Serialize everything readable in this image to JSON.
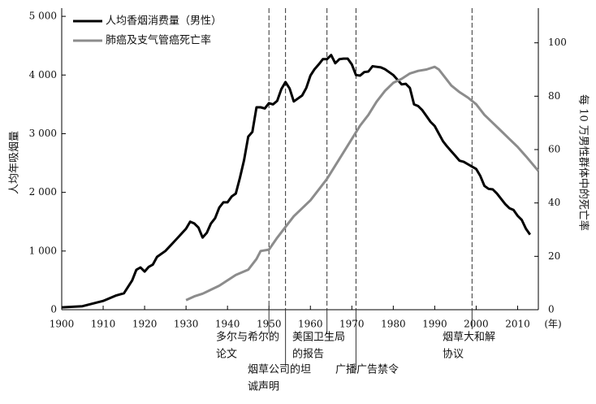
{
  "chart_data": {
    "type": "line",
    "xlabel": "(年)",
    "ylabel": "人均年吸烟量",
    "y2label": "每 10 万男性群体中的死亡率",
    "xlim": [
      1900,
      2015
    ],
    "xticks": [
      1900,
      1910,
      1920,
      1930,
      1940,
      1950,
      1960,
      1970,
      1980,
      1990,
      2000,
      2010
    ],
    "ylim": [
      0,
      5140
    ],
    "yticks": [
      0,
      {
        "value": 1000,
        "label": "1 000"
      },
      {
        "value": 2000,
        "label": "2 000"
      },
      {
        "value": 3000,
        "label": "3 000"
      },
      {
        "value": 4000,
        "label": "4 000"
      },
      {
        "value": 5000,
        "label": "5 000"
      }
    ],
    "y2lim": [
      0,
      113
    ],
    "y2ticks": [
      0,
      20,
      40,
      60,
      80,
      100
    ],
    "legend": "upper left",
    "series": [
      {
        "name": "人均香烟消费量（男性）",
        "color": "#000000",
        "x": [
          1900,
          1905,
          1910,
          1913,
          1915,
          1917,
          1918,
          1919,
          1920,
          1921,
          1922,
          1923,
          1925,
          1927,
          1930,
          1931,
          1932,
          1933,
          1934,
          1935,
          1936,
          1937,
          1938,
          1939,
          1940,
          1941,
          1942,
          1943,
          1944,
          1945,
          1946,
          1947,
          1948,
          1949,
          1950,
          1951,
          1952,
          1953,
          1954,
          1955,
          1956,
          1957,
          1958,
          1959,
          1960,
          1961,
          1962,
          1963,
          1964,
          1965,
          1966,
          1967,
          1968,
          1969,
          1970,
          1971,
          1972,
          1973,
          1974,
          1975,
          1976,
          1977,
          1978,
          1979,
          1980,
          1981,
          1982,
          1983,
          1984,
          1985,
          1986,
          1987,
          1988,
          1989,
          1990,
          1991,
          1992,
          1993,
          1994,
          1995,
          1996,
          1997,
          1998,
          1999,
          2000,
          2001,
          2002,
          2003,
          2004,
          2005,
          2006,
          2007,
          2008,
          2009,
          2010,
          2011,
          2012,
          2013
        ],
        "values": [
          40,
          60,
          150,
          240,
          280,
          500,
          680,
          720,
          650,
          730,
          770,
          900,
          1000,
          1150,
          1380,
          1500,
          1470,
          1400,
          1230,
          1310,
          1470,
          1560,
          1740,
          1830,
          1830,
          1930,
          1980,
          2250,
          2550,
          2950,
          3030,
          3450,
          3450,
          3430,
          3520,
          3500,
          3560,
          3760,
          3880,
          3770,
          3550,
          3600,
          3650,
          3780,
          3990,
          4100,
          4180,
          4270,
          4270,
          4340,
          4200,
          4270,
          4280,
          4280,
          4180,
          4000,
          3990,
          4050,
          4060,
          4150,
          4140,
          4130,
          4100,
          4050,
          4000,
          3920,
          3840,
          3850,
          3780,
          3500,
          3470,
          3400,
          3300,
          3200,
          3130,
          3000,
          2870,
          2780,
          2700,
          2620,
          2540,
          2520,
          2480,
          2440,
          2400,
          2280,
          2110,
          2060,
          2050,
          1980,
          1890,
          1800,
          1730,
          1700,
          1600,
          1530,
          1380,
          1280
        ]
      },
      {
        "name": "肺癌及支气管癌死亡率",
        "color": "#8c8c8c",
        "axis": "y2",
        "x": [
          1930,
          1932,
          1934,
          1936,
          1938,
          1940,
          1942,
          1945,
          1947,
          1948,
          1950,
          1952,
          1954,
          1956,
          1958,
          1960,
          1962,
          1964,
          1966,
          1968,
          1970,
          1972,
          1974,
          1976,
          1978,
          1980,
          1982,
          1984,
          1986,
          1988,
          1990,
          1991,
          1992,
          1994,
          1996,
          1998,
          2000,
          2002,
          2004,
          2006,
          2008,
          2010,
          2012,
          2015
        ],
        "values": [
          3.6,
          5,
          6,
          7.5,
          9,
          11,
          13,
          15,
          19,
          22,
          22.5,
          27,
          31,
          35,
          38,
          41,
          45,
          49,
          54,
          59,
          64,
          69,
          73,
          78,
          82,
          85,
          86.5,
          88.5,
          89.5,
          90,
          91,
          90,
          88,
          84,
          81.5,
          79.5,
          77,
          73,
          70,
          67,
          64,
          61,
          57.5,
          52
        ]
      }
    ],
    "annotations": [
      {
        "x": 1950,
        "lines": [
          "多尔与希尔的",
          "论文"
        ]
      },
      {
        "x": 1954,
        "lines": [
          "烟草公司的坦",
          "诚声明"
        ]
      },
      {
        "x": 1964,
        "lines": [
          "美国卫生局",
          "的报告"
        ]
      },
      {
        "x": 1971,
        "lines": [
          "广播广告禁令"
        ]
      },
      {
        "x": 1999,
        "lines": [
          "烟草大和解",
          "协议"
        ]
      }
    ]
  }
}
